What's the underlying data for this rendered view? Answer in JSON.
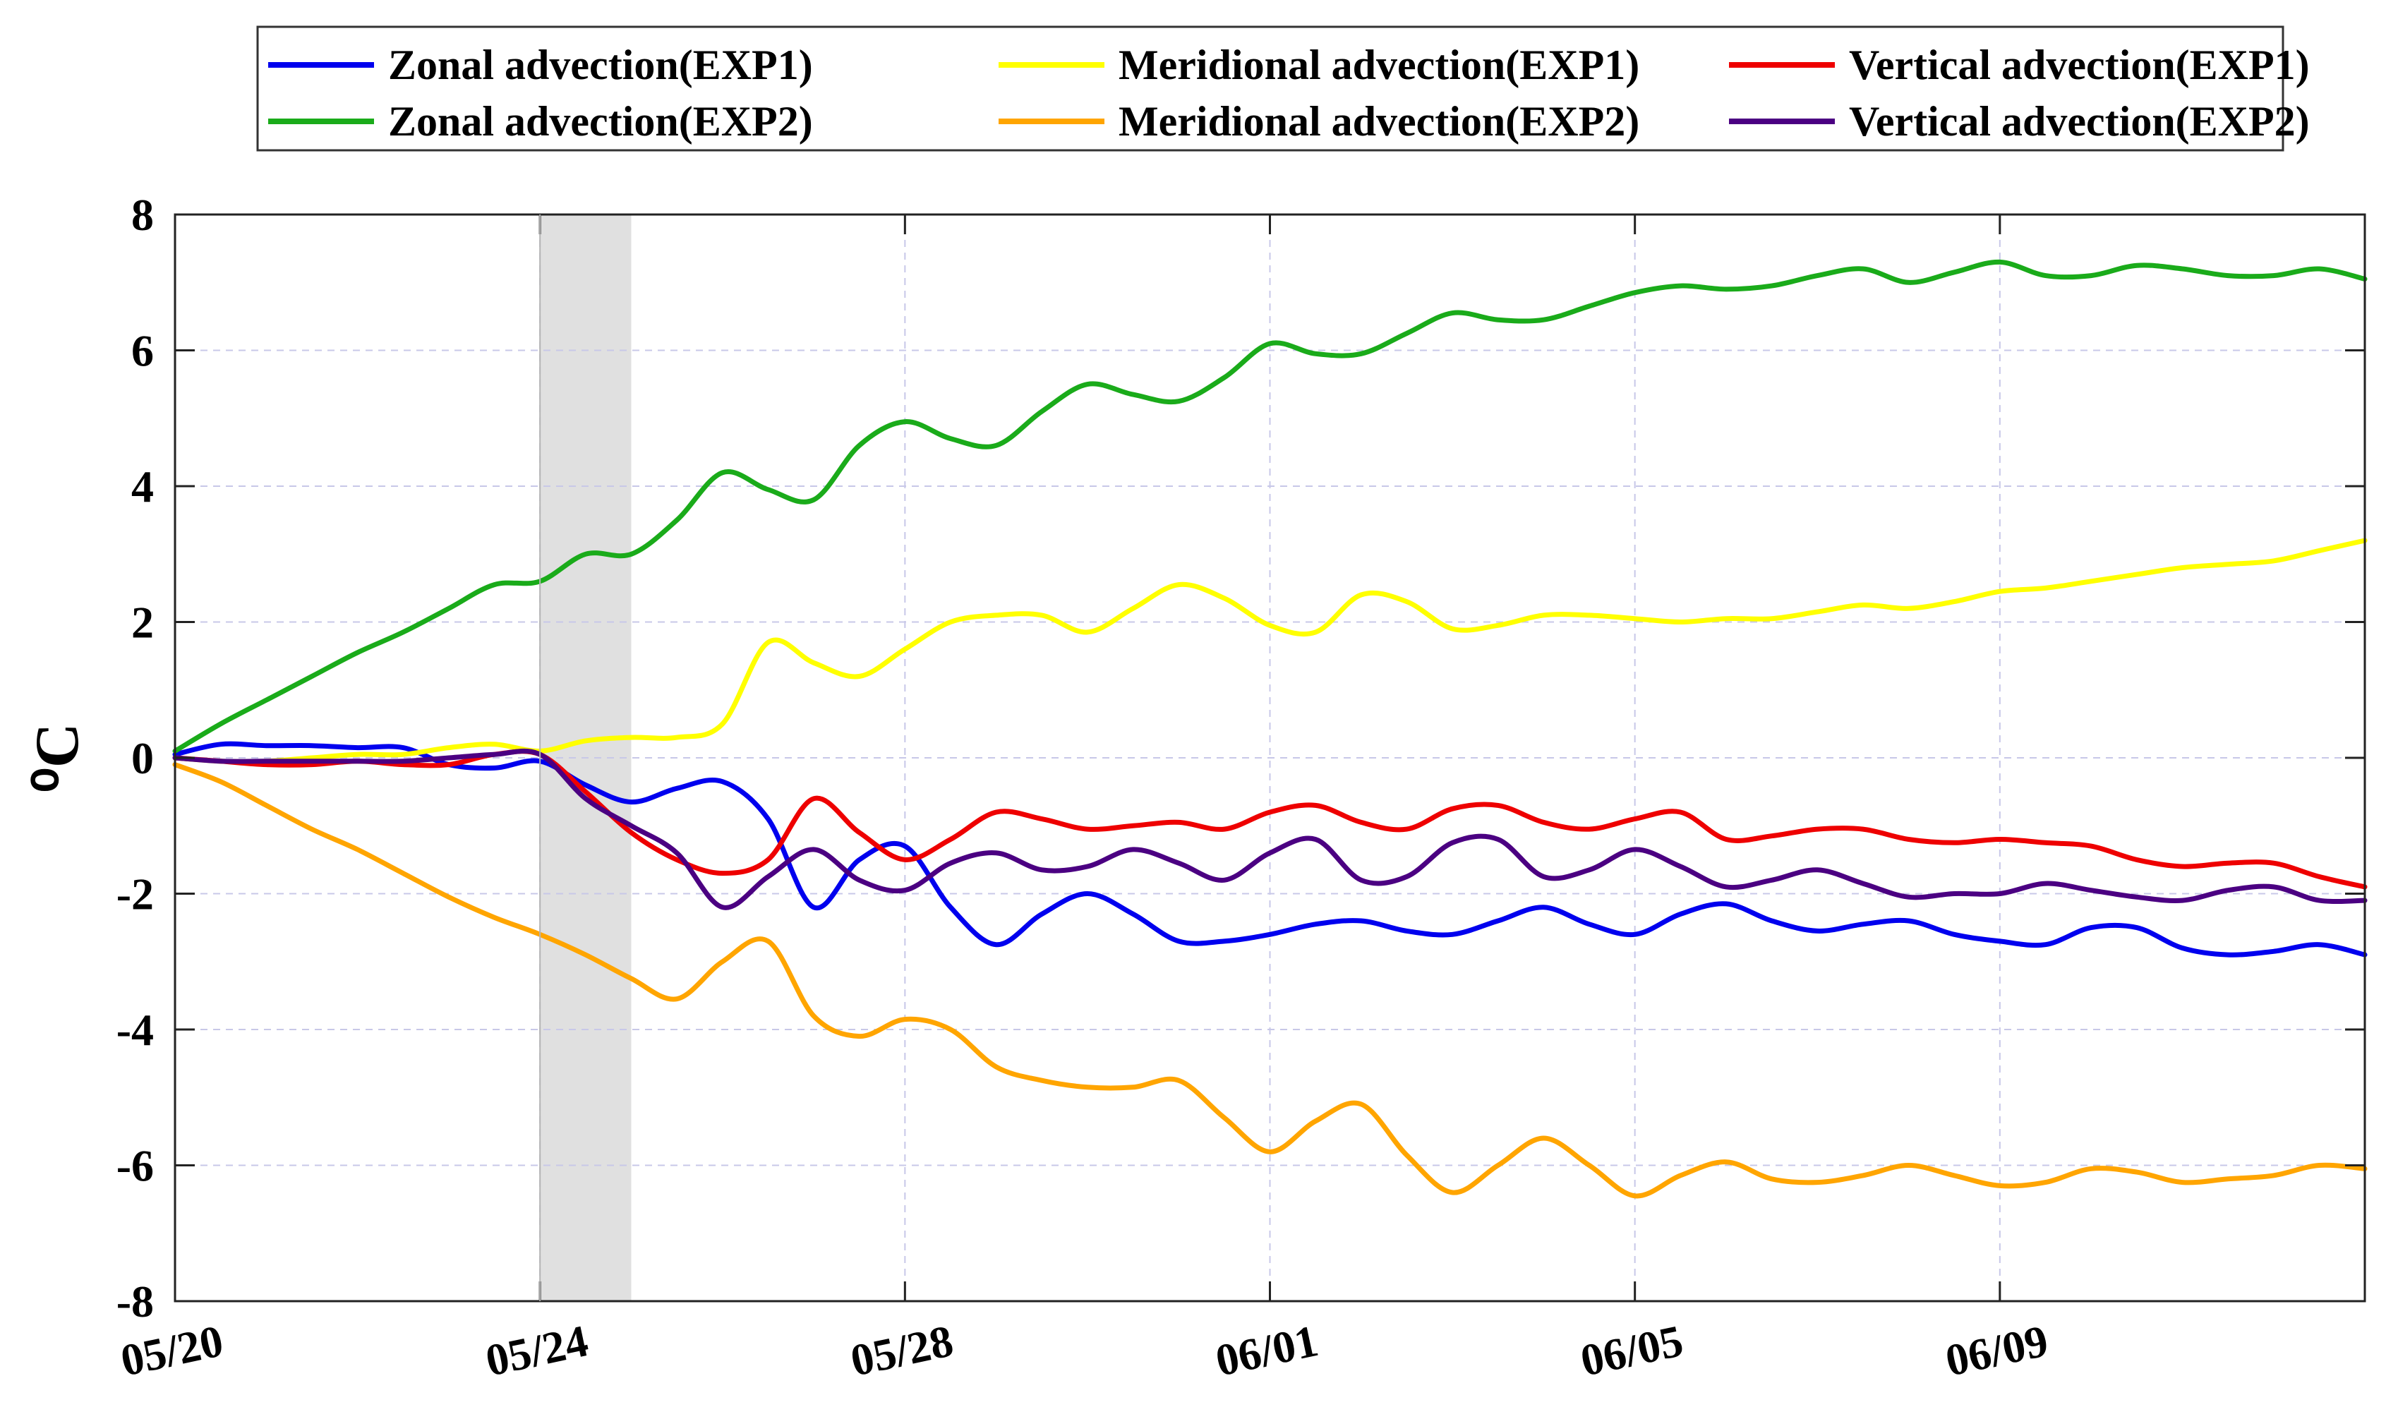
{
  "chart_data": {
    "type": "line",
    "title": "",
    "xlabel": "",
    "ylabel": "⁰C",
    "ylim": [
      -8,
      8
    ],
    "xlim": [
      0,
      24
    ],
    "y_ticks": [
      8,
      6,
      4,
      2,
      0,
      -2,
      -4,
      -6,
      -8
    ],
    "y_tick_labels": [
      "8",
      "6",
      "4",
      "2",
      "0",
      "-2",
      "-4",
      "-6",
      "-8"
    ],
    "x_ticks": [
      0,
      4,
      8,
      12,
      16,
      20
    ],
    "x_tick_labels": [
      "05/20",
      "05/24",
      "05/28",
      "06/01",
      "06/05",
      "06/09"
    ],
    "grid": true,
    "legend_position": "top",
    "shaded_region": {
      "x_start": 4,
      "x_end": 5,
      "color": "#e0e0e0"
    },
    "series": [
      {
        "name": "Zonal advection(EXP1)",
        "color": "#0000ee",
        "x": [
          0,
          0.5,
          1,
          1.5,
          2,
          2.5,
          3,
          3.5,
          4,
          4.5,
          5,
          5.5,
          6,
          6.5,
          7,
          7.5,
          8,
          8.5,
          9,
          9.5,
          10,
          10.5,
          11,
          11.5,
          12,
          12.5,
          13,
          13.5,
          14,
          14.5,
          15,
          15.5,
          16,
          16.5,
          17,
          17.5,
          18,
          18.5,
          19,
          19.5,
          20,
          20.5,
          21,
          21.5,
          22,
          22.5,
          23,
          23.5,
          24
        ],
        "y": [
          0.05,
          0.2,
          0.18,
          0.18,
          0.15,
          0.15,
          -0.1,
          -0.15,
          -0.05,
          -0.4,
          -0.65,
          -0.45,
          -0.35,
          -0.9,
          -2.2,
          -1.5,
          -1.3,
          -2.2,
          -2.75,
          -2.3,
          -2.0,
          -2.3,
          -2.7,
          -2.7,
          -2.6,
          -2.45,
          -2.4,
          -2.55,
          -2.6,
          -2.4,
          -2.2,
          -2.45,
          -2.6,
          -2.3,
          -2.15,
          -2.4,
          -2.55,
          -2.45,
          -2.4,
          -2.6,
          -2.7,
          -2.75,
          -2.5,
          -2.5,
          -2.8,
          -2.9,
          -2.85,
          -2.75,
          -2.9
        ]
      },
      {
        "name": "Meridional advection(EXP1)",
        "color": "#ffff00",
        "x": [
          0,
          0.5,
          1,
          1.5,
          2,
          2.5,
          3,
          3.5,
          4,
          4.5,
          5,
          5.5,
          6,
          6.5,
          7,
          7.5,
          8,
          8.5,
          9,
          9.5,
          10,
          10.5,
          11,
          11.5,
          12,
          12.5,
          13,
          13.5,
          14,
          14.5,
          15,
          15.5,
          16,
          16.5,
          17,
          17.5,
          18,
          18.5,
          19,
          19.5,
          20,
          20.5,
          21,
          21.5,
          22,
          22.5,
          23,
          23.5,
          24
        ],
        "y": [
          0,
          -0.05,
          -0.05,
          0,
          0.05,
          0.05,
          0.15,
          0.2,
          0.1,
          0.25,
          0.3,
          0.3,
          0.5,
          1.7,
          1.4,
          1.2,
          1.6,
          2.0,
          2.1,
          2.1,
          1.85,
          2.2,
          2.55,
          2.35,
          1.95,
          1.85,
          2.4,
          2.3,
          1.9,
          1.95,
          2.1,
          2.1,
          2.05,
          2.0,
          2.05,
          2.05,
          2.15,
          2.25,
          2.2,
          2.3,
          2.45,
          2.5,
          2.6,
          2.7,
          2.8,
          2.85,
          2.9,
          3.05,
          3.2
        ]
      },
      {
        "name": "Vertical advection(EXP1)",
        "color": "#ee0000",
        "x": [
          0,
          0.5,
          1,
          1.5,
          2,
          2.5,
          3,
          3.5,
          4,
          4.5,
          5,
          5.5,
          6,
          6.5,
          7,
          7.5,
          8,
          8.5,
          9,
          9.5,
          10,
          10.5,
          11,
          11.5,
          12,
          12.5,
          13,
          13.5,
          14,
          14.5,
          15,
          15.5,
          16,
          16.5,
          17,
          17.5,
          18,
          18.5,
          19,
          19.5,
          20,
          20.5,
          21,
          21.5,
          22,
          22.5,
          23,
          23.5,
          24
        ],
        "y": [
          0,
          -0.05,
          -0.1,
          -0.1,
          -0.05,
          -0.1,
          -0.1,
          0.05,
          0.05,
          -0.5,
          -1.1,
          -1.5,
          -1.7,
          -1.5,
          -0.6,
          -1.1,
          -1.5,
          -1.2,
          -0.8,
          -0.9,
          -1.05,
          -1.0,
          -0.95,
          -1.05,
          -0.8,
          -0.7,
          -0.95,
          -1.05,
          -0.75,
          -0.7,
          -0.95,
          -1.05,
          -0.9,
          -0.8,
          -1.2,
          -1.15,
          -1.05,
          -1.05,
          -1.2,
          -1.25,
          -1.2,
          -1.25,
          -1.3,
          -1.5,
          -1.6,
          -1.55,
          -1.55,
          -1.75,
          -1.9
        ]
      },
      {
        "name": "Zonal advection(EXP2)",
        "color": "#1aab1a",
        "x": [
          0,
          0.5,
          1,
          1.5,
          2,
          2.5,
          3,
          3.5,
          4,
          4.5,
          5,
          5.5,
          6,
          6.5,
          7,
          7.5,
          8,
          8.5,
          9,
          9.5,
          10,
          10.5,
          11,
          11.5,
          12,
          12.5,
          13,
          13.5,
          14,
          14.5,
          15,
          15.5,
          16,
          16.5,
          17,
          17.5,
          18,
          18.5,
          19,
          19.5,
          20,
          20.5,
          21,
          21.5,
          22,
          22.5,
          23,
          23.5,
          24
        ],
        "y": [
          0.1,
          0.5,
          0.85,
          1.2,
          1.55,
          1.85,
          2.2,
          2.55,
          2.6,
          3.0,
          3.0,
          3.5,
          4.2,
          3.95,
          3.8,
          4.6,
          4.95,
          4.7,
          4.6,
          5.1,
          5.5,
          5.35,
          5.25,
          5.6,
          6.1,
          5.95,
          5.95,
          6.25,
          6.55,
          6.45,
          6.45,
          6.65,
          6.85,
          6.95,
          6.9,
          6.95,
          7.1,
          7.2,
          7.0,
          7.15,
          7.3,
          7.1,
          7.1,
          7.25,
          7.2,
          7.1,
          7.1,
          7.2,
          7.05
        ]
      },
      {
        "name": "Meridional advection(EXP2)",
        "color": "#ffa500",
        "x": [
          0,
          0.5,
          1,
          1.5,
          2,
          2.5,
          3,
          3.5,
          4,
          4.5,
          5,
          5.5,
          6,
          6.5,
          7,
          7.5,
          8,
          8.5,
          9,
          9.5,
          10,
          10.5,
          11,
          11.5,
          12,
          12.5,
          13,
          13.5,
          14,
          14.5,
          15,
          15.5,
          16,
          16.5,
          17,
          17.5,
          18,
          18.5,
          19,
          19.5,
          20,
          20.5,
          21,
          21.5,
          22,
          22.5,
          23,
          23.5,
          24
        ],
        "y": [
          -0.1,
          -0.35,
          -0.7,
          -1.05,
          -1.35,
          -1.7,
          -2.05,
          -2.35,
          -2.6,
          -2.9,
          -3.25,
          -3.55,
          -3.0,
          -2.7,
          -3.8,
          -4.1,
          -3.85,
          -4.0,
          -4.55,
          -4.75,
          -4.85,
          -4.85,
          -4.75,
          -5.3,
          -5.8,
          -5.35,
          -5.1,
          -5.85,
          -6.4,
          -6.0,
          -5.6,
          -6.0,
          -6.45,
          -6.15,
          -5.95,
          -6.2,
          -6.25,
          -6.15,
          -6.0,
          -6.15,
          -6.3,
          -6.25,
          -6.05,
          -6.1,
          -6.25,
          -6.2,
          -6.15,
          -6.0,
          -6.05
        ]
      },
      {
        "name": "Vertical advection(EXP2)",
        "color": "#4b0082",
        "x": [
          0,
          0.5,
          1,
          1.5,
          2,
          2.5,
          3,
          3.5,
          4,
          4.5,
          5,
          5.5,
          6,
          6.5,
          7,
          7.5,
          8,
          8.5,
          9,
          9.5,
          10,
          10.5,
          11,
          11.5,
          12,
          12.5,
          13,
          13.5,
          14,
          14.5,
          15,
          15.5,
          16,
          16.5,
          17,
          17.5,
          18,
          18.5,
          19,
          19.5,
          20,
          20.5,
          21,
          21.5,
          22,
          22.5,
          23,
          23.5,
          24
        ],
        "y": [
          0,
          -0.05,
          -0.05,
          -0.05,
          -0.05,
          -0.05,
          0,
          0.05,
          0.05,
          -0.6,
          -1.0,
          -1.4,
          -2.2,
          -1.75,
          -1.35,
          -1.8,
          -1.95,
          -1.55,
          -1.4,
          -1.65,
          -1.6,
          -1.35,
          -1.55,
          -1.8,
          -1.4,
          -1.2,
          -1.8,
          -1.75,
          -1.25,
          -1.2,
          -1.75,
          -1.65,
          -1.35,
          -1.6,
          -1.9,
          -1.8,
          -1.65,
          -1.85,
          -2.05,
          -2.0,
          -2.0,
          -1.85,
          -1.95,
          -2.05,
          -2.1,
          -1.95,
          -1.9,
          -2.1,
          -2.1
        ]
      }
    ]
  }
}
